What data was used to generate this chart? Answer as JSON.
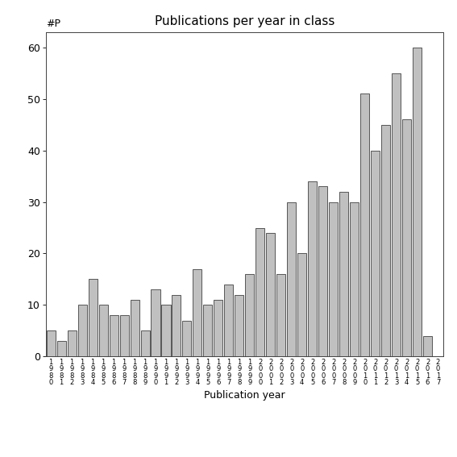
{
  "title": "Publications per year in class",
  "xlabel": "Publication year",
  "ylabel": "#P",
  "bar_color": "#c0c0c0",
  "bar_edge_color": "#404040",
  "background_color": "#ffffff",
  "ylim": [
    0,
    63
  ],
  "yticks": [
    0,
    10,
    20,
    30,
    40,
    50,
    60
  ],
  "categories": [
    "1\n9\n8\n0",
    "1\n9\n8\n1",
    "1\n9\n8\n2",
    "1\n9\n8\n3",
    "1\n9\n8\n4",
    "1\n9\n8\n5",
    "1\n9\n8\n6",
    "1\n9\n8\n7",
    "1\n9\n8\n8",
    "1\n9\n8\n9",
    "1\n9\n9\n0",
    "1\n9\n9\n1",
    "1\n9\n9\n2",
    "1\n9\n9\n3",
    "1\n9\n9\n4",
    "1\n9\n9\n5",
    "1\n9\n9\n6",
    "1\n9\n9\n7",
    "1\n9\n9\n8",
    "1\n9\n9\n9",
    "2\n0\n0\n0",
    "2\n0\n0\n1",
    "2\n0\n0\n2",
    "2\n0\n0\n3",
    "2\n0\n0\n4",
    "2\n0\n0\n5",
    "2\n0\n0\n6",
    "2\n0\n0\n7",
    "2\n0\n0\n8",
    "2\n0\n0\n9",
    "2\n0\n1\n0",
    "2\n0\n1\n1",
    "2\n0\n1\n2",
    "2\n0\n1\n3",
    "2\n0\n1\n4",
    "2\n0\n1\n5",
    "2\n0\n1\n6",
    "2\n0\n1\n7"
  ],
  "values": [
    5,
    3,
    5,
    10,
    15,
    10,
    8,
    8,
    11,
    5,
    13,
    10,
    12,
    7,
    17,
    10,
    11,
    14,
    12,
    16,
    25,
    24,
    16,
    30,
    20,
    34,
    33,
    30,
    32,
    30,
    51,
    40,
    45,
    55,
    46,
    60,
    4,
    0
  ],
  "title_fontsize": 11,
  "axis_fontsize": 9,
  "ylabel_fontsize": 9,
  "xlabel_fontsize": 9
}
